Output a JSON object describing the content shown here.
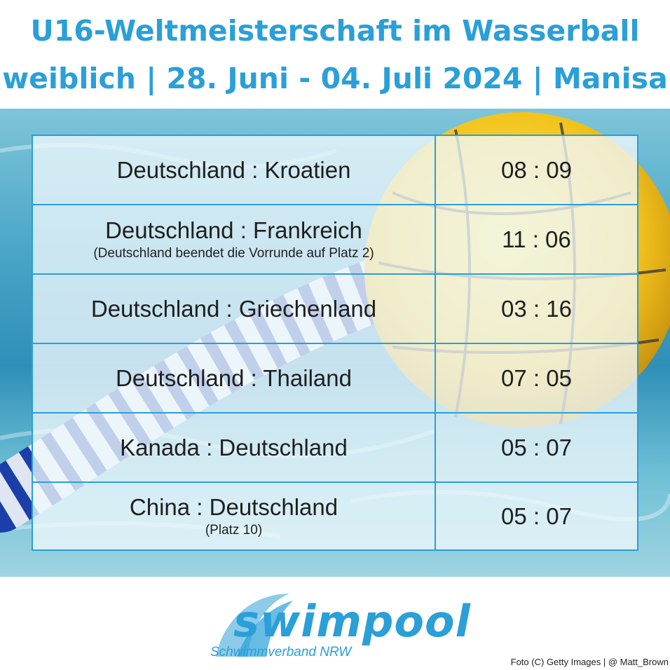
{
  "header": {
    "title_line1": "U16-Weltmeisterschaft im Wasserball",
    "title_line2": "weiblich | 28. Juni - 04. Juli 2024 | Manisa"
  },
  "colors": {
    "accent": "#2a9fd8",
    "ball_yellow": "#f2c21b",
    "water": "#3d9ec4"
  },
  "results": [
    {
      "match": "Deutschland : Kroatien",
      "note": "",
      "score": "08 : 09"
    },
    {
      "match": "Deutschland : Frankreich",
      "note": "(Deutschland beendet die Vorrunde auf Platz 2)",
      "score": "11 : 06"
    },
    {
      "match": "Deutschland : Griechenland",
      "note": "",
      "score": "03 : 16"
    },
    {
      "match": "Deutschland : Thailand",
      "note": "",
      "score": "07 : 05"
    },
    {
      "match": "Kanada : Deutschland",
      "note": "",
      "score": "05 : 07"
    },
    {
      "match": "China : Deutschland",
      "note": "(Platz 10)",
      "score": "05 : 07"
    }
  ],
  "footer": {
    "logo_word": "swimpool",
    "logo_subtitle": "Schwimmverband NRW",
    "photo_credit": "Foto (C) Getty Images | @ Matt_Brown"
  }
}
